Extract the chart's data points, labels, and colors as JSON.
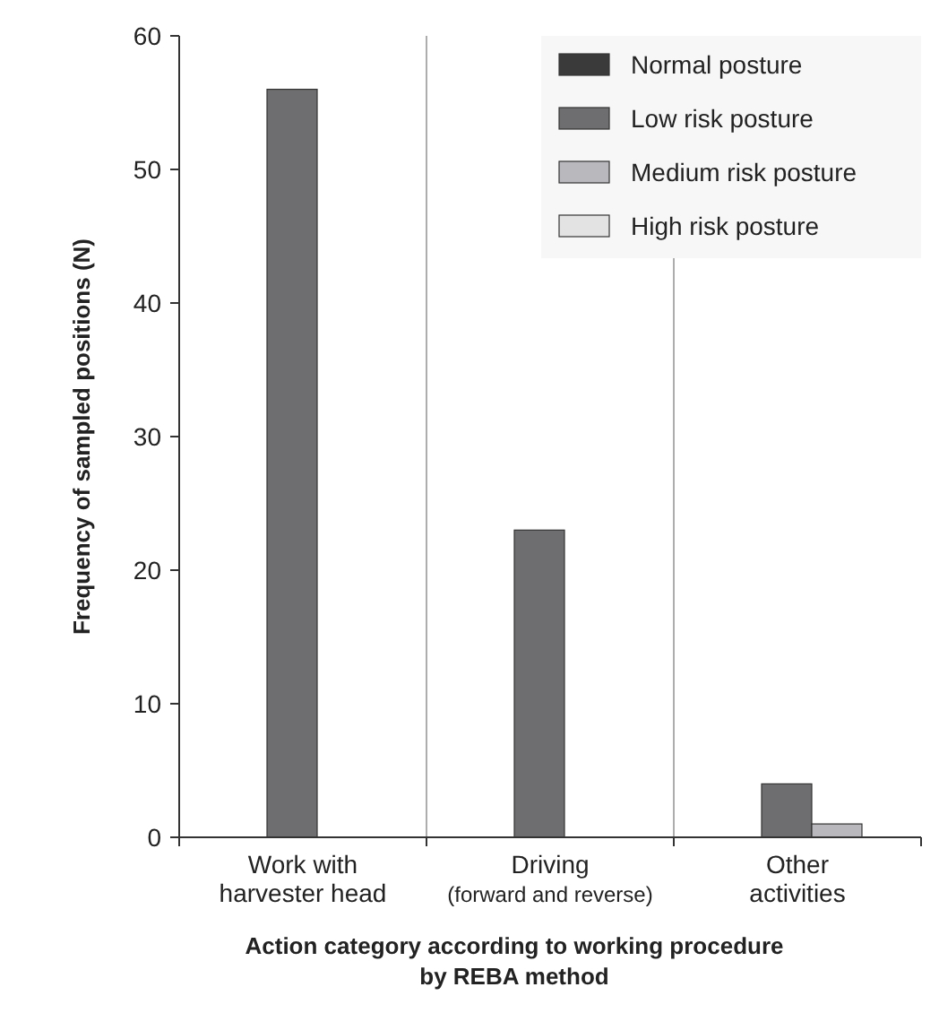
{
  "chart_data": {
    "type": "bar",
    "xlabel": "Action category according to working procedure by REBA method",
    "ylabel": "Frequency of sampled positions (N)",
    "categories": [
      "Work with harvester head",
      "Driving (forward and reverse)",
      "Other activities"
    ],
    "series": [
      {
        "name": "Normal posture",
        "color": "#3a3a3a",
        "values": [
          0,
          0,
          0
        ]
      },
      {
        "name": "Low risk posture",
        "color": "#6e6e70",
        "values": [
          56,
          23,
          4
        ]
      },
      {
        "name": "Medium risk posture",
        "color": "#b9b9bd",
        "values": [
          0,
          0,
          1
        ]
      },
      {
        "name": "High risk posture",
        "color": "#e3e3e3",
        "values": [
          0,
          0,
          0
        ]
      }
    ],
    "ylim": [
      0,
      60
    ],
    "yticks": [
      0,
      10,
      20,
      30,
      40,
      50,
      60
    ],
    "grid": "x",
    "legend": "top right"
  }
}
